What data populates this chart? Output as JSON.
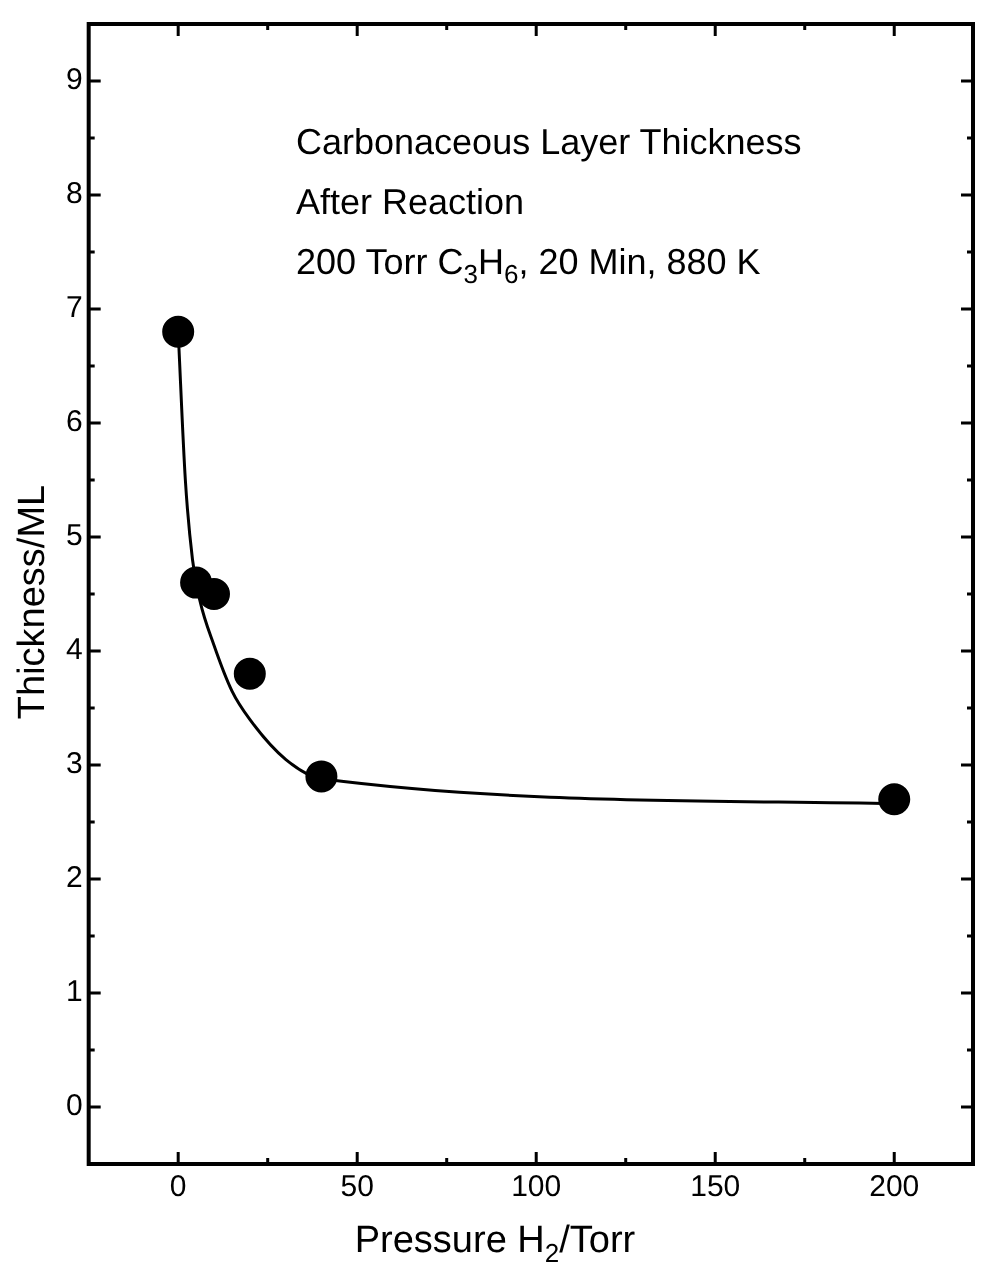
{
  "chart_data": {
    "type": "scatter",
    "xlabel": "Pressure H$_{2}$/Torr",
    "ylabel": "Thickness/ML",
    "annotations": [
      "Carbonaceous Layer Thickness",
      "After Reaction",
      "200 Torr C$_{3}$H$_{6}$, 20 Min, 880 K"
    ],
    "xlim": [
      -25,
      222
    ],
    "ylim": [
      -0.5,
      9.5
    ],
    "xticks": [
      0,
      {
        "value": 25,
        "label": null
      },
      50,
      {
        "value": 75,
        "label": null
      },
      100,
      {
        "value": 125,
        "label": null
      },
      150,
      {
        "value": 175,
        "label": null
      },
      200
    ],
    "yticks": [
      0,
      {
        "value": 0.5,
        "label": null
      },
      1,
      {
        "value": 1.5,
        "label": null
      },
      2,
      {
        "value": 2.5,
        "label": null
      },
      3,
      {
        "value": 3.5,
        "label": null
      },
      4,
      {
        "value": 4.5,
        "label": null
      },
      5,
      {
        "value": 5.5,
        "label": null
      },
      6,
      {
        "value": 6.5,
        "label": null
      },
      7,
      {
        "value": 7.5,
        "label": null
      },
      8,
      {
        "value": 8.5,
        "label": null
      },
      9
    ],
    "grid": false,
    "legend": false,
    "series": [
      {
        "type": "line",
        "color": "#000000",
        "marker": "none",
        "line_style": "solid",
        "x": [
          0,
          2,
          4,
          6,
          10,
          15,
          20,
          30,
          40,
          200
        ],
        "values": [
          6.8,
          5.5,
          4.8,
          4.45,
          4.05,
          3.65,
          3.4,
          3.05,
          2.88,
          2.66
        ]
      },
      {
        "color": "#000000",
        "marker": "circle",
        "x": [
          0,
          5,
          10,
          20,
          40,
          200
        ],
        "values": [
          6.8,
          4.6,
          4.5,
          3.8,
          2.9,
          2.7
        ]
      }
    ]
  }
}
